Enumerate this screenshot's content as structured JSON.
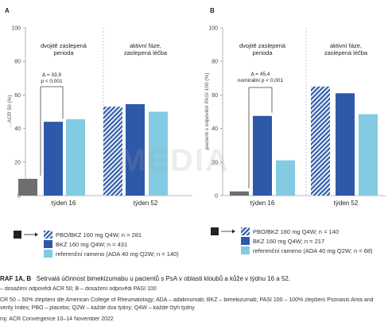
{
  "colors": {
    "pbo": "#6e6e6e",
    "bkz": "#2e59a8",
    "ref": "#82cbe3",
    "hatch_fg": "#2e59a8",
    "hatch_bg": "#e6eef8",
    "divider": "#b7bfc7",
    "axis": "#9aa0a6"
  },
  "chart_data": [
    {
      "type": "bar",
      "panel": "A",
      "ylabel": "…ACR 50 (%)",
      "ylim": [
        0,
        100
      ],
      "yticks": [
        0,
        20,
        40,
        60,
        80,
        100
      ],
      "categories": [
        "týden 16",
        "týden 52"
      ],
      "period_labels": [
        [
          "dvojitě zaslepená",
          "perioda"
        ],
        [
          "aktivní fáze,",
          "zaslepená léčba"
        ]
      ],
      "series": [
        {
          "name": "PBO",
          "style": "pbo",
          "values": [
            10,
            null
          ]
        },
        {
          "name": "PBO/BKZ 160 mg Q4W",
          "style": "hatch",
          "values": [
            null,
            53
          ]
        },
        {
          "name": "BKZ 160 mg Q4W",
          "style": "bkz",
          "values": [
            44,
            54.5
          ]
        },
        {
          "name": "referenční rameno (ADA 40 mg Q2W)",
          "style": "ref",
          "values": [
            45.5,
            50
          ]
        }
      ],
      "annotation": {
        "line1": "Δ = 33,9",
        "line2": "p < 0,001"
      }
    },
    {
      "type": "bar",
      "panel": "B",
      "ylabel": "pacienti s odpovědí PASI 100 (%)",
      "ylim": [
        0,
        100
      ],
      "yticks": [
        0,
        20,
        40,
        60,
        80,
        100
      ],
      "categories": [
        "týden 16",
        "týden 52"
      ],
      "period_labels": [
        [
          "dvojitě zaslepená",
          "perioda"
        ],
        [
          "aktivní fáze,",
          "zaslepená léčba"
        ]
      ],
      "series": [
        {
          "name": "PBO",
          "style": "pbo",
          "values": [
            2.5,
            null
          ]
        },
        {
          "name": "PBO/BKZ 160 mg Q4W",
          "style": "hatch",
          "values": [
            null,
            65
          ]
        },
        {
          "name": "BKZ 160 mg Q4W",
          "style": "bkz",
          "values": [
            47.5,
            61
          ]
        },
        {
          "name": "referenční rameno (ADA 40 mg Q2W)",
          "style": "ref",
          "values": [
            21,
            48.5
          ]
        }
      ],
      "annotation": {
        "line0": "Δ = 45,4",
        "line1": "nominální p < 0,001"
      }
    }
  ],
  "legends": [
    {
      "items": [
        {
          "style": "hatch",
          "label": "PBO/BKZ 160 mg Q4W; n = 281"
        },
        {
          "style": "bkz",
          "label": "BKZ 160 mg Q4W; n = 431"
        },
        {
          "style": "ref",
          "label": "referenční rameno (ADA 40 mg Q2W; n = 140)"
        }
      ]
    },
    {
      "items": [
        {
          "style": "hatch",
          "label": "PBO/BKZ 160 mg Q4W; n = 140"
        },
        {
          "style": "bkz",
          "label": "BKZ 160 mg Q4W; n = 217"
        },
        {
          "style": "ref",
          "label": "referenční rameno (ADA 40 mg Q2W; n = 68)"
        }
      ]
    }
  ],
  "caption": {
    "label": "RAF 1A, B",
    "title": "Setrvalá účinnost bimekizumabu u pacientů s PsA v oblasti kloubů a kůže v týdnu 16 a 52.",
    "line2": "– dosažení odpovědi ACR 50; B – dosažení odpovědi PASI 100",
    "line3": "CR 50 – 50% zlepšení dle American College of Rheumatology; ADA – adalimumab; BKZ – bimekizumab; PASI 100 – 100% zlepšení Psoriasis Area and",
    "line4": "verity Index; PBO – placebo; Q2W – každé dva týdny; Q4W – každé čtyři týdny",
    "line5": "roj: ACR Convergence 10–14 November 2022"
  },
  "watermark": "MEDIA"
}
